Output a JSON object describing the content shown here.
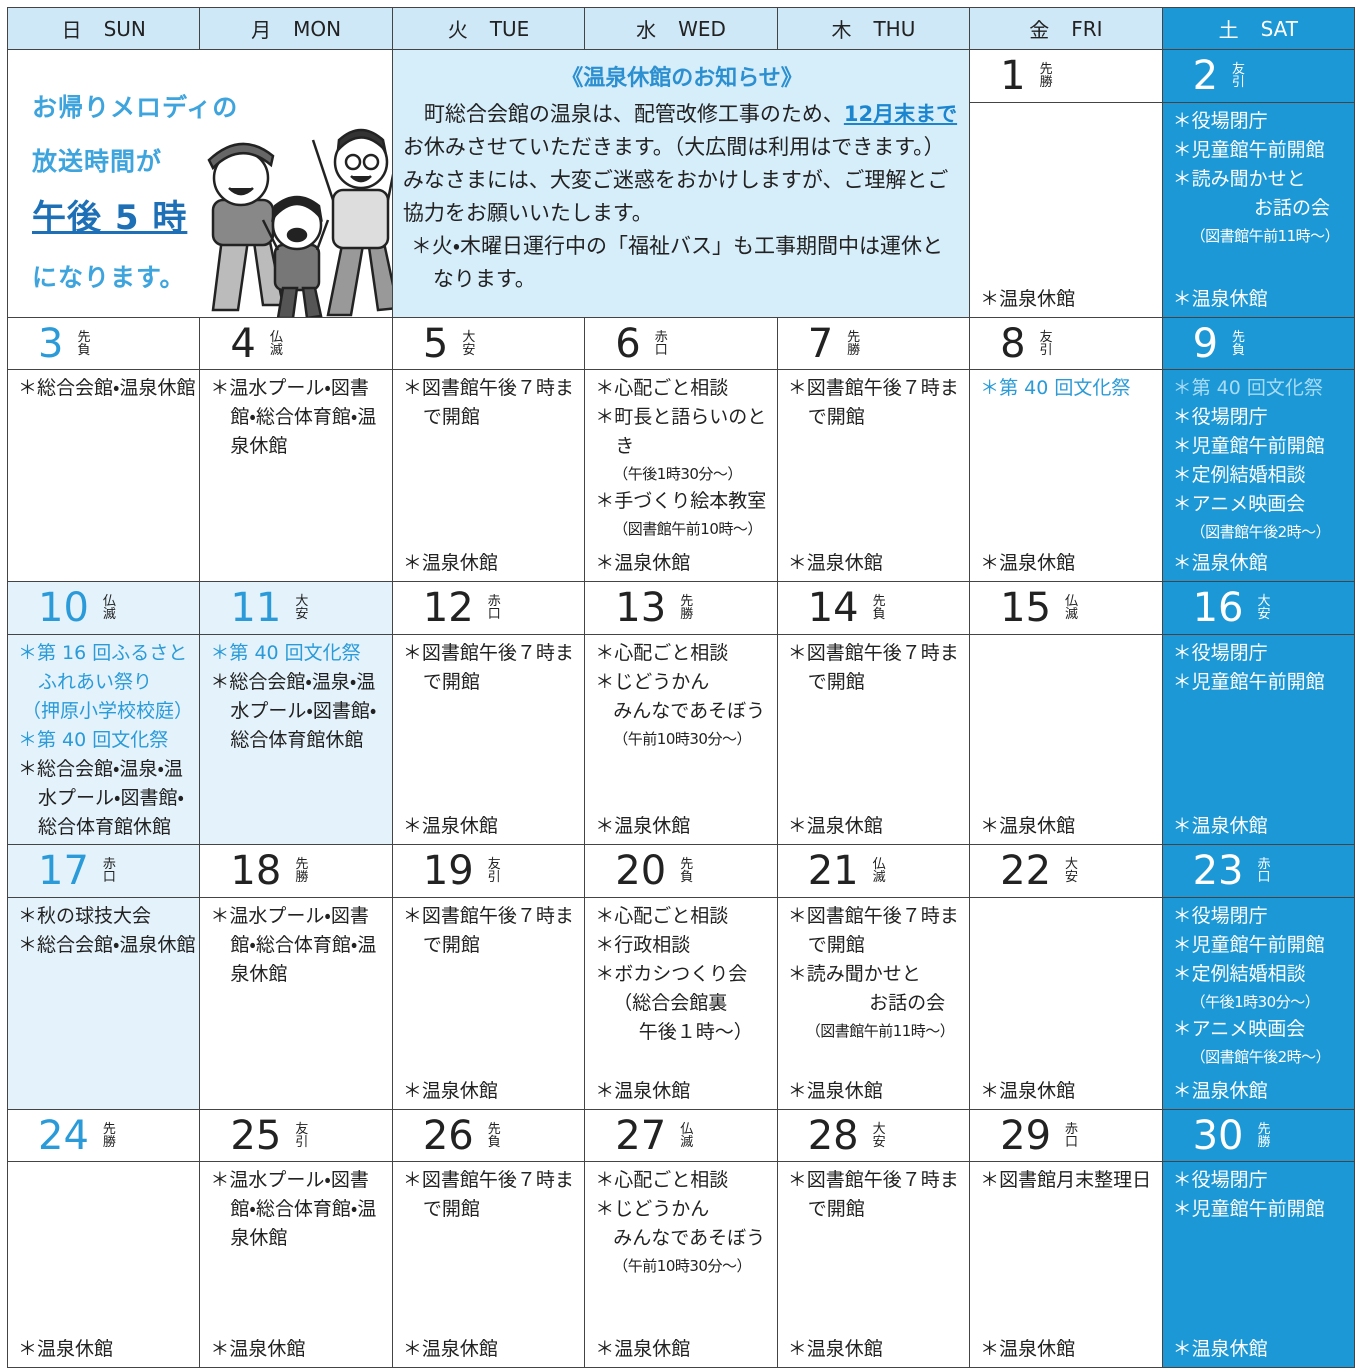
{
  "header": {
    "days": [
      {
        "ja": "日",
        "en": "SUN"
      },
      {
        "ja": "月",
        "en": "MON"
      },
      {
        "ja": "火",
        "en": "TUE"
      },
      {
        "ja": "水",
        "en": "WED"
      },
      {
        "ja": "木",
        "en": "THU"
      },
      {
        "ja": "金",
        "en": "FRI"
      },
      {
        "ja": "土",
        "en": "SAT"
      }
    ]
  },
  "melody": {
    "lines": [
      "お帰りメロディの",
      "放送時間が",
      "午後 5 時",
      "になります。"
    ]
  },
  "notice": {
    "title": "《温泉休館のお知らせ》",
    "body_before": "町総合会館の温泉は、配管改修工事のため、",
    "highlight": "12月末まで",
    "body_after": "お休みさせていただきます。（大広間は利用はできます。）みなさまには、大変ご迷惑をおかけしますが、ご理解とご協力をお願いいたします。",
    "bus": "＊火・木曜日運行中の「福祉バス」も工事期間中は運休となります。"
  },
  "weeks": [
    [
      null,
      null,
      null,
      null,
      null,
      {
        "day": "1",
        "rokuyo": [
          "先",
          "勝"
        ],
        "events": [],
        "footer": "＊温泉休館"
      },
      {
        "day": "2",
        "rokuyo": [
          "友",
          "引"
        ],
        "events": [
          {
            "text": "＊役場閉庁"
          },
          {
            "text": "＊児童館午前開館"
          },
          {
            "text": "＊読み聞かせと"
          },
          {
            "text": "お話の会",
            "kind": "right"
          },
          {
            "text": "（図書館午前11時～）",
            "kind": "note"
          }
        ],
        "footer": "＊温泉休館"
      }
    ],
    [
      {
        "day": "3",
        "rokuyo": [
          "先",
          "負"
        ],
        "events": [
          {
            "text": "＊総合会館・温泉休館"
          }
        ]
      },
      {
        "day": "4",
        "rokuyo": [
          "仏",
          "滅"
        ],
        "events": [
          {
            "text": "＊温水プール・図書館・総合体育館・温泉休館"
          }
        ]
      },
      {
        "day": "5",
        "rokuyo": [
          "大",
          "安"
        ],
        "events": [
          {
            "text": "＊図書館午後７時まで開館"
          }
        ],
        "footer": "＊温泉休館"
      },
      {
        "day": "6",
        "rokuyo": [
          "赤",
          "口"
        ],
        "events": [
          {
            "text": "＊心配ごと相談"
          },
          {
            "text": "＊町長と語らいのとき"
          },
          {
            "text": "（午後1時30分～）",
            "kind": "note"
          },
          {
            "text": "＊手づくり絵本教室"
          },
          {
            "text": "（図書館午前10時～）",
            "kind": "note"
          }
        ],
        "footer": "＊温泉休館"
      },
      {
        "day": "7",
        "rokuyo": [
          "先",
          "勝"
        ],
        "events": [
          {
            "text": "＊図書館午後７時まで開館"
          }
        ],
        "footer": "＊温泉休館"
      },
      {
        "day": "8",
        "rokuyo": [
          "友",
          "引"
        ],
        "events": [
          {
            "text": "＊第 40 回文化祭",
            "kind": "blue"
          }
        ],
        "footer": "＊温泉休館"
      },
      {
        "day": "9",
        "rokuyo": [
          "先",
          "負"
        ],
        "events": [
          {
            "text": "＊第 40 回文化祭",
            "kind": "blue"
          },
          {
            "text": "＊役場閉庁"
          },
          {
            "text": "＊児童館午前開館"
          },
          {
            "text": "＊定例結婚相談"
          },
          {
            "text": "＊アニメ映画会"
          },
          {
            "text": "（図書館午後2時～）",
            "kind": "note"
          }
        ],
        "footer": "＊温泉休館"
      }
    ],
    [
      {
        "day": "10",
        "rokuyo": [
          "仏",
          "滅"
        ],
        "shaded": true,
        "events": [
          {
            "text": "＊第 16 回ふるさとふれあい祭り",
            "kind": "blue"
          },
          {
            "text": "（押原小学校校庭）",
            "kind": "blue"
          },
          {
            "text": "＊第 40 回文化祭",
            "kind": "blue"
          },
          {
            "text": "＊総合会館・温泉・温水プール・図書館・総合体育館休館"
          }
        ]
      },
      {
        "day": "11",
        "rokuyo": [
          "大",
          "安"
        ],
        "shaded": true,
        "holiday": true,
        "events": [
          {
            "text": "＊第 40 回文化祭",
            "kind": "blue"
          },
          {
            "text": "＊総合会館・温泉・温水プール・図書館・総合体育館休館"
          }
        ]
      },
      {
        "day": "12",
        "rokuyo": [
          "赤",
          "口"
        ],
        "events": [
          {
            "text": "＊図書館午後７時まで開館"
          }
        ],
        "footer": "＊温泉休館"
      },
      {
        "day": "13",
        "rokuyo": [
          "先",
          "勝"
        ],
        "events": [
          {
            "text": "＊心配ごと相談"
          },
          {
            "text": "＊じどうかん"
          },
          {
            "text": "みんなであそぼう",
            "kind": "indent"
          },
          {
            "text": "（午前10時30分～）",
            "kind": "note"
          }
        ],
        "footer": "＊温泉休館"
      },
      {
        "day": "14",
        "rokuyo": [
          "先",
          "負"
        ],
        "events": [
          {
            "text": "＊図書館午後７時まで開館"
          }
        ],
        "footer": "＊温泉休館"
      },
      {
        "day": "15",
        "rokuyo": [
          "仏",
          "滅"
        ],
        "events": [],
        "footer": "＊温泉休館"
      },
      {
        "day": "16",
        "rokuyo": [
          "大",
          "安"
        ],
        "events": [
          {
            "text": "＊役場閉庁"
          },
          {
            "text": "＊児童館午前開館"
          }
        ],
        "footer": "＊温泉休館"
      }
    ],
    [
      {
        "day": "17",
        "rokuyo": [
          "赤",
          "口"
        ],
        "shaded": true,
        "events": [
          {
            "text": "＊秋の球技大会"
          },
          {
            "text": "＊総合会館・温泉休館"
          }
        ]
      },
      {
        "day": "18",
        "rokuyo": [
          "先",
          "勝"
        ],
        "events": [
          {
            "text": "＊温水プール・図書館・総合体育館・温泉休館"
          }
        ]
      },
      {
        "day": "19",
        "rokuyo": [
          "友",
          "引"
        ],
        "events": [
          {
            "text": "＊図書館午後７時まで開館"
          }
        ],
        "footer": "＊温泉休館"
      },
      {
        "day": "20",
        "rokuyo": [
          "先",
          "負"
        ],
        "events": [
          {
            "text": "＊心配ごと相談"
          },
          {
            "text": "＊行政相談"
          },
          {
            "text": "＊ボカシつくり会"
          },
          {
            "text": "（総合会館裏",
            "kind": "indent"
          },
          {
            "text": "午後１時～）",
            "kind": "right"
          }
        ],
        "footer": "＊温泉休館"
      },
      {
        "day": "21",
        "rokuyo": [
          "仏",
          "滅"
        ],
        "events": [
          {
            "text": "＊図書館午後７時まで開館"
          },
          {
            "text": "＊読み聞かせと"
          },
          {
            "text": "お話の会",
            "kind": "right"
          },
          {
            "text": "（図書館午前11時～）",
            "kind": "note"
          }
        ],
        "footer": "＊温泉休館"
      },
      {
        "day": "22",
        "rokuyo": [
          "大",
          "安"
        ],
        "events": [],
        "footer": "＊温泉休館"
      },
      {
        "day": "23",
        "rokuyo": [
          "赤",
          "口"
        ],
        "events": [
          {
            "text": "＊役場閉庁"
          },
          {
            "text": "＊児童館午前開館"
          },
          {
            "text": "＊定例結婚相談"
          },
          {
            "text": "（午後1時30分～）",
            "kind": "note"
          },
          {
            "text": "＊アニメ映画会"
          },
          {
            "text": "（図書館午後2時～）",
            "kind": "note"
          }
        ],
        "footer": "＊温泉休館"
      }
    ],
    [
      {
        "day": "24",
        "rokuyo": [
          "先",
          "勝"
        ],
        "events": [],
        "footer": "＊温泉休館"
      },
      {
        "day": "25",
        "rokuyo": [
          "友",
          "引"
        ],
        "events": [
          {
            "text": "＊温水プール・図書館・総合体育館・温泉休館"
          }
        ],
        "footer": "＊温泉休館"
      },
      {
        "day": "26",
        "rokuyo": [
          "先",
          "負"
        ],
        "events": [
          {
            "text": "＊図書館午後７時まで開館"
          }
        ],
        "footer": "＊温泉休館"
      },
      {
        "day": "27",
        "rokuyo": [
          "仏",
          "滅"
        ],
        "events": [
          {
            "text": "＊心配ごと相談"
          },
          {
            "text": "＊じどうかん"
          },
          {
            "text": "みんなであそぼう",
            "kind": "indent"
          },
          {
            "text": "（午前10時30分～）",
            "kind": "note"
          }
        ],
        "footer": "＊温泉休館"
      },
      {
        "day": "28",
        "rokuyo": [
          "大",
          "安"
        ],
        "events": [
          {
            "text": "＊図書館午後７時まで開館"
          }
        ],
        "footer": "＊温泉休館"
      },
      {
        "day": "29",
        "rokuyo": [
          "赤",
          "口"
        ],
        "events": [
          {
            "text": "＊図書館月末整理日"
          }
        ],
        "footer": "＊温泉休館"
      },
      {
        "day": "30",
        "rokuyo": [
          "先",
          "勝"
        ],
        "events": [
          {
            "text": "＊役場閉庁"
          },
          {
            "text": "＊児童館午前開館"
          }
        ],
        "footer": "＊温泉休館"
      }
    ]
  ]
}
